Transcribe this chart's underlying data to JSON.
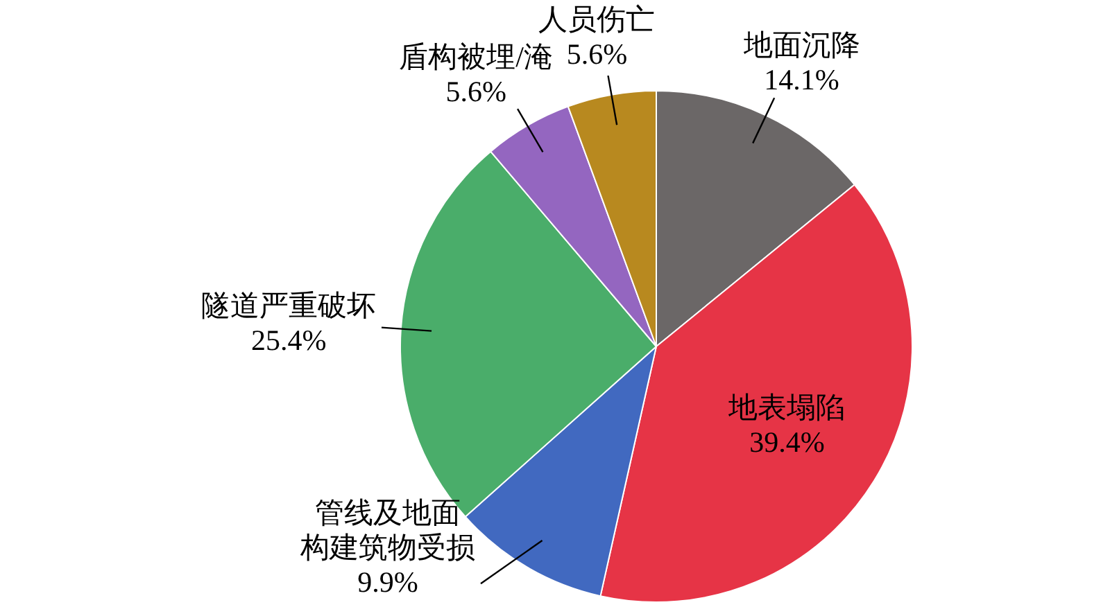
{
  "chart_data": {
    "type": "pie",
    "categories": [
      "地面沉降",
      "地表塌陷",
      "管线及地面构建筑物受损",
      "隧道严重破坏",
      "盾构被埋/淹",
      "人员伤亡"
    ],
    "values": [
      14.1,
      39.4,
      9.9,
      25.4,
      5.6,
      5.6
    ],
    "colors": [
      "#6b6767",
      "#e63446",
      "#4169c0",
      "#4aad6a",
      "#9466c0",
      "#b8891f"
    ],
    "value_labels": [
      "14.1%",
      "39.4%",
      "9.9%",
      "25.4%",
      "5.6%",
      "5.6%"
    ],
    "legend": false
  }
}
